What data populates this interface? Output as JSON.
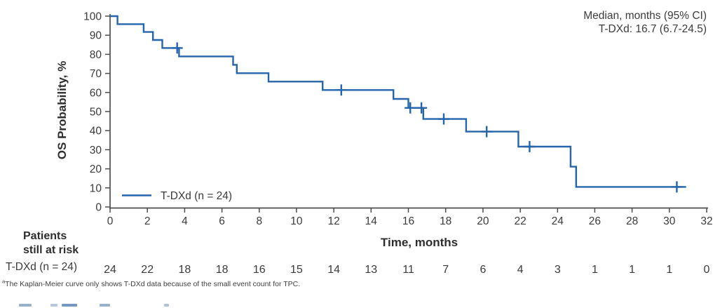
{
  "figure": {
    "annotation": {
      "line1": "Median, months (95% CI)",
      "line2": "T-DXd: 16.7 (6.7-24.5)"
    },
    "footnote": {
      "marker": "a",
      "text": "The Kaplan-Meier curve only shows T-DXd data because of the small event count for TPC."
    }
  },
  "risk_table": {
    "header_line1": "Patients",
    "header_line2": "still at risk",
    "row_label": "T-DXd (n = 24)",
    "times": [
      0,
      2,
      4,
      6,
      8,
      10,
      12,
      14,
      16,
      18,
      20,
      22,
      24,
      26,
      28,
      30,
      32
    ],
    "values": [
      24,
      22,
      18,
      18,
      16,
      15,
      14,
      13,
      11,
      7,
      6,
      4,
      3,
      1,
      1,
      1,
      0
    ]
  },
  "chart_data": {
    "type": "line",
    "subtype": "kaplan-meier-step",
    "title": "",
    "xlabel": "Time, months",
    "ylabel": "OS Probability, %",
    "xlim": [
      0,
      32
    ],
    "ylim": [
      0,
      100
    ],
    "x_ticks": [
      0,
      2,
      4,
      6,
      8,
      10,
      12,
      14,
      16,
      18,
      20,
      22,
      24,
      26,
      28,
      30,
      32
    ],
    "y_ticks": [
      0,
      10,
      20,
      30,
      40,
      50,
      60,
      70,
      80,
      90,
      100
    ],
    "grid": false,
    "legend_position": "inside-bottom-left",
    "colors": {
      "curve": "#2565ab",
      "axis": "#4d4d4d",
      "text": "#3b3b3b"
    },
    "series": [
      {
        "name": "T-DXd (n = 24)",
        "color": "#2565ab",
        "median_months": 16.7,
        "median_ci": "6.7-24.5",
        "steps": [
          {
            "t": 0.0,
            "s": 100
          },
          {
            "t": 0.4,
            "s": 95.8
          },
          {
            "t": 1.8,
            "s": 91.7
          },
          {
            "t": 2.3,
            "s": 87.5
          },
          {
            "t": 2.8,
            "s": 83.3
          },
          {
            "t": 3.7,
            "s": 78.9
          },
          {
            "t": 6.6,
            "s": 74.5
          },
          {
            "t": 6.8,
            "s": 70.1
          },
          {
            "t": 8.5,
            "s": 65.7
          },
          {
            "t": 11.4,
            "s": 61.3
          },
          {
            "t": 15.2,
            "s": 56.6
          },
          {
            "t": 16.0,
            "s": 51.9
          },
          {
            "t": 16.8,
            "s": 46.1
          },
          {
            "t": 19.1,
            "s": 39.5
          },
          {
            "t": 21.9,
            "s": 31.6
          },
          {
            "t": 24.7,
            "s": 21.1
          },
          {
            "t": 25.0,
            "s": 10.5
          }
        ],
        "curve_end_t": 30.9,
        "censor_marks": [
          {
            "t": 3.6,
            "s": 83.3
          },
          {
            "t": 12.4,
            "s": 61.3
          },
          {
            "t": 16.1,
            "s": 51.9
          },
          {
            "t": 16.7,
            "s": 51.9
          },
          {
            "t": 17.9,
            "s": 46.1
          },
          {
            "t": 20.2,
            "s": 39.5
          },
          {
            "t": 22.5,
            "s": 31.6
          },
          {
            "t": 30.4,
            "s": 10.5
          }
        ]
      }
    ]
  }
}
